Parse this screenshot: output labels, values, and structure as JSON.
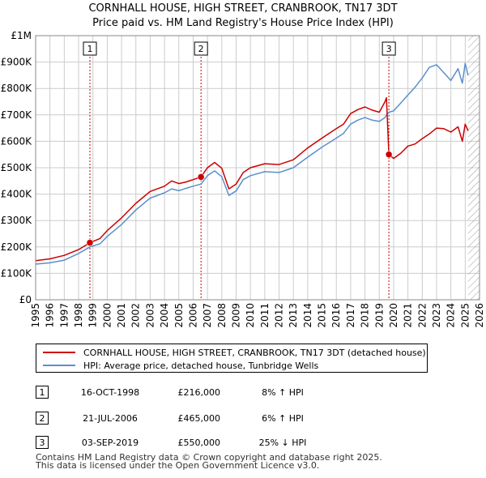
{
  "title_line1": "CORNHALL HOUSE, HIGH STREET, CRANBROOK, TN17 3DT",
  "title_line2": "Price paid vs. HM Land Registry's House Price Index (HPI)",
  "colors": {
    "property": "#cc0000",
    "hpi": "#5b8fcc",
    "grid": "#cccccc",
    "marker": "#cc0000",
    "dash": "#cc0000"
  },
  "chart_data": {
    "type": "line",
    "title": "Price paid vs. HM Land Registry's House Price Index (HPI)",
    "xlabel": "",
    "ylabel": "",
    "xlim": [
      1995,
      2026
    ],
    "ylim": [
      0,
      1000000
    ],
    "y_ticks": [
      0,
      100000,
      200000,
      300000,
      400000,
      500000,
      600000,
      700000,
      800000,
      900000,
      1000000
    ],
    "y_tick_labels": [
      "£0",
      "£100K",
      "£200K",
      "£300K",
      "£400K",
      "£500K",
      "£600K",
      "£700K",
      "£800K",
      "£900K",
      "£1M"
    ],
    "x_ticks": [
      1995,
      1996,
      1997,
      1998,
      1999,
      2000,
      2001,
      2002,
      2003,
      2004,
      2005,
      2006,
      2007,
      2008,
      2009,
      2010,
      2011,
      2012,
      2013,
      2014,
      2015,
      2016,
      2017,
      2018,
      2019,
      2020,
      2021,
      2022,
      2023,
      2024,
      2025,
      2026
    ],
    "series": [
      {
        "name": "CORNHALL HOUSE, HIGH STREET, CRANBROOK, TN17 3DT (detached house)",
        "x": [
          1995.0,
          1996.0,
          1997.0,
          1998.0,
          1998.79,
          1999.5,
          2000.0,
          2001.0,
          2002.0,
          2003.0,
          2004.0,
          2004.5,
          2005.0,
          2005.5,
          2006.0,
          2006.55,
          2007.0,
          2007.5,
          2008.0,
          2008.5,
          2009.0,
          2009.5,
          2010.0,
          2011.0,
          2012.0,
          2013.0,
          2014.0,
          2015.0,
          2016.0,
          2016.5,
          2017.0,
          2017.5,
          2018.0,
          2018.5,
          2019.0,
          2019.4,
          2019.5,
          2019.67,
          2020.0,
          2020.5,
          2021.0,
          2021.5,
          2022.0,
          2022.5,
          2023.0,
          2023.5,
          2024.0,
          2024.5,
          2024.8,
          2025.0,
          2025.2
        ],
        "values": [
          148000,
          155000,
          168000,
          190000,
          216000,
          232000,
          262000,
          310000,
          365000,
          410000,
          430000,
          450000,
          440000,
          446000,
          455000,
          465000,
          500000,
          520000,
          498000,
          420000,
          438000,
          482000,
          500000,
          515000,
          512000,
          530000,
          575000,
          612000,
          648000,
          665000,
          705000,
          720000,
          730000,
          718000,
          710000,
          750000,
          765000,
          550000,
          535000,
          555000,
          582000,
          590000,
          610000,
          628000,
          650000,
          648000,
          635000,
          655000,
          600000,
          665000,
          640000
        ]
      },
      {
        "name": "HPI: Average price, detached house, Tunbridge Wells",
        "x": [
          1995.0,
          1996.0,
          1997.0,
          1998.0,
          1998.79,
          1999.5,
          2000.0,
          2001.0,
          2002.0,
          2003.0,
          2004.0,
          2004.5,
          2005.0,
          2005.5,
          2006.0,
          2006.55,
          2007.0,
          2007.5,
          2008.0,
          2008.5,
          2009.0,
          2009.5,
          2010.0,
          2011.0,
          2012.0,
          2013.0,
          2014.0,
          2015.0,
          2016.0,
          2016.5,
          2017.0,
          2017.5,
          2018.0,
          2018.5,
          2019.0,
          2019.4,
          2019.5,
          2019.67,
          2020.0,
          2020.5,
          2021.0,
          2021.5,
          2022.0,
          2022.5,
          2023.0,
          2023.5,
          2024.0,
          2024.5,
          2024.8,
          2025.0,
          2025.2
        ],
        "values": [
          135000,
          140000,
          150000,
          175000,
          200000,
          212000,
          240000,
          285000,
          340000,
          385000,
          405000,
          420000,
          413000,
          422000,
          430000,
          438000,
          470000,
          488000,
          466000,
          395000,
          412000,
          455000,
          470000,
          485000,
          482000,
          500000,
          540000,
          578000,
          612000,
          630000,
          665000,
          680000,
          690000,
          680000,
          675000,
          690000,
          700000,
          710000,
          715000,
          745000,
          775000,
          805000,
          840000,
          880000,
          890000,
          860000,
          830000,
          875000,
          820000,
          895000,
          850000
        ]
      }
    ],
    "sales": [
      {
        "label": "1",
        "x": 1998.79,
        "value": 216000
      },
      {
        "label": "2",
        "x": 2006.55,
        "value": 465000
      },
      {
        "label": "3",
        "x": 2019.67,
        "value": 550000
      }
    ],
    "legend_position": "bottom",
    "grid": true
  },
  "legend": {
    "property": "CORNHALL HOUSE, HIGH STREET, CRANBROOK, TN17 3DT (detached house)",
    "hpi": "HPI: Average price, detached house, Tunbridge Wells"
  },
  "sales_table": [
    {
      "num": "1",
      "date": "16-OCT-1998",
      "price": "£216,000",
      "hpi": "8% ↑ HPI"
    },
    {
      "num": "2",
      "date": "21-JUL-2006",
      "price": "£465,000",
      "hpi": "6% ↑ HPI"
    },
    {
      "num": "3",
      "date": "03-SEP-2019",
      "price": "£550,000",
      "hpi": "25% ↓ HPI"
    }
  ],
  "footer_line1": "Contains HM Land Registry data © Crown copyright and database right 2025.",
  "footer_line2": "This data is licensed under the Open Government Licence v3.0."
}
